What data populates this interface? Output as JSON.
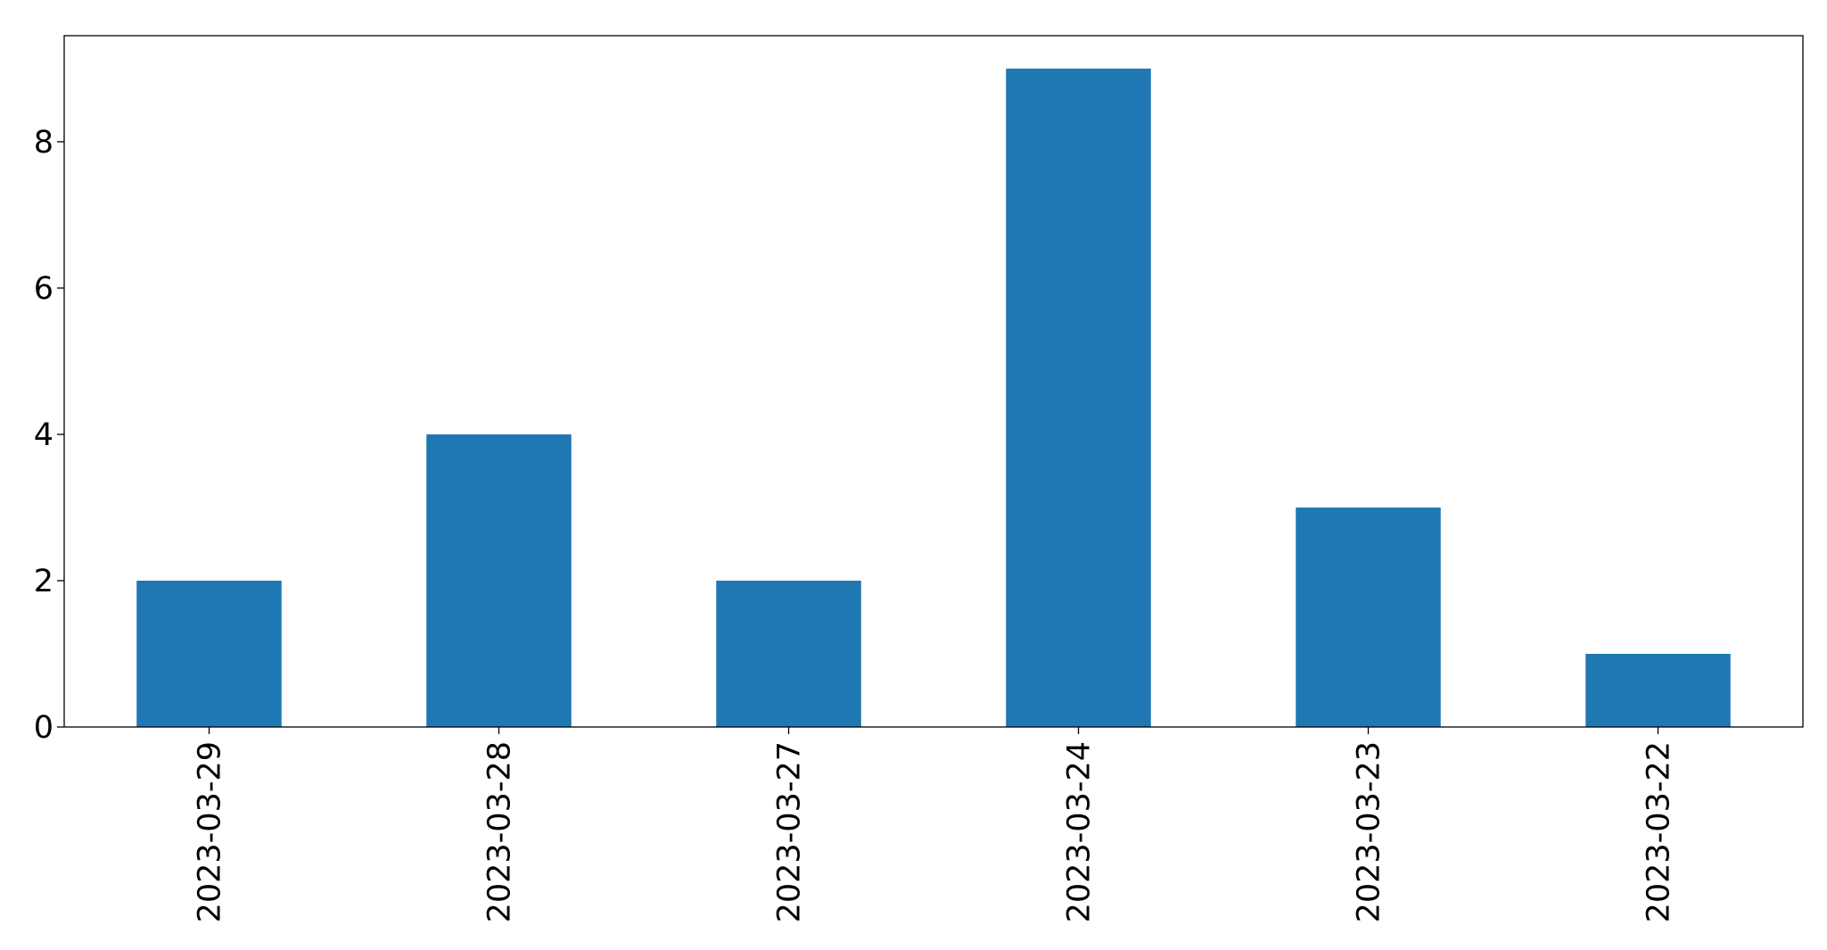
{
  "chart_data": {
    "type": "bar",
    "categories": [
      "2023-03-29",
      "2023-03-28",
      "2023-03-27",
      "2023-03-24",
      "2023-03-23",
      "2023-03-22"
    ],
    "values": [
      2,
      4,
      2,
      9,
      3,
      1
    ],
    "title": "",
    "xlabel": "",
    "ylabel": "",
    "ylim": [
      0,
      9.45
    ],
    "yticks": [
      0,
      2,
      4,
      6,
      8
    ],
    "grid": false,
    "legend": "none",
    "bar_color": "#1f77b4",
    "x_tick_rotation": "vertical"
  }
}
